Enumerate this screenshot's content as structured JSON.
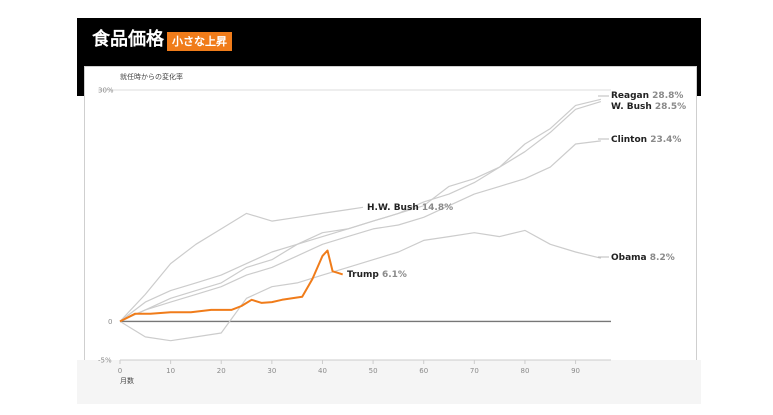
{
  "header": {
    "title": "食品価格",
    "badge": "小さな上昇"
  },
  "colors": {
    "banner_bg": "#000000",
    "accent": "#f07c1a",
    "comparison_line": "#cccccc",
    "zero_line": "#777777"
  },
  "chart_data": {
    "type": "line",
    "title": "食品価格",
    "subtitle": "小さな上昇",
    "ylabel": "就任時からの変化率",
    "xlabel": "月数",
    "ylim": [
      -5,
      30
    ],
    "xlim": [
      0,
      97
    ],
    "y_ticks": [
      "30%",
      "0",
      "-5%"
    ],
    "y_tick_values": [
      30,
      0,
      -5
    ],
    "x_ticks": [
      0,
      10,
      20,
      30,
      40,
      50,
      60,
      70,
      80,
      90
    ],
    "grid": false,
    "series": [
      {
        "name": "Reagan",
        "end_label": "28.8%",
        "x": [
          0,
          5,
          10,
          15,
          20,
          25,
          30,
          35,
          40,
          45,
          50,
          55,
          60,
          65,
          70,
          75,
          80,
          85,
          90,
          95
        ],
        "y": [
          0,
          2.5,
          4.0,
          5.0,
          6.0,
          7.5,
          9.0,
          10.0,
          11.0,
          12.0,
          13.0,
          14.0,
          15.0,
          17.5,
          18.5,
          20.0,
          23.0,
          25.0,
          28.0,
          28.8
        ]
      },
      {
        "name": "W. Bush",
        "end_label": "28.5%",
        "x": [
          0,
          5,
          10,
          15,
          20,
          25,
          30,
          35,
          40,
          45,
          50,
          55,
          60,
          65,
          70,
          75,
          80,
          85,
          90,
          95
        ],
        "y": [
          0,
          1.5,
          3.0,
          4.0,
          5.0,
          7.0,
          8.0,
          10.0,
          11.5,
          12.0,
          13.0,
          14.0,
          15.5,
          16.5,
          18.0,
          20.0,
          22.0,
          24.5,
          27.5,
          28.5
        ]
      },
      {
        "name": "Clinton",
        "end_label": "23.4%",
        "x": [
          0,
          5,
          10,
          15,
          20,
          25,
          30,
          35,
          40,
          45,
          50,
          55,
          60,
          65,
          70,
          75,
          80,
          85,
          90,
          95
        ],
        "y": [
          0,
          1.5,
          2.5,
          3.5,
          4.5,
          6.0,
          7.0,
          8.5,
          10.0,
          11.0,
          12.0,
          12.5,
          13.5,
          15.0,
          16.5,
          17.5,
          18.5,
          20.0,
          23.0,
          23.4
        ]
      },
      {
        "name": "H.W. Bush",
        "end_label": "14.8%",
        "x": [
          0,
          5,
          10,
          15,
          20,
          25,
          30,
          35,
          40,
          45,
          48
        ],
        "y": [
          0,
          3.5,
          7.5,
          10.0,
          12.0,
          14.0,
          13.0,
          13.5,
          14.0,
          14.5,
          14.8
        ]
      },
      {
        "name": "Obama",
        "end_label": "8.2%",
        "x": [
          0,
          5,
          10,
          15,
          20,
          25,
          30,
          35,
          40,
          45,
          50,
          55,
          60,
          65,
          70,
          75,
          80,
          85,
          90,
          95
        ],
        "y": [
          0,
          -2.0,
          -2.5,
          -2.0,
          -1.5,
          3.0,
          4.5,
          5.0,
          6.0,
          7.0,
          8.0,
          9.0,
          10.5,
          11.0,
          11.5,
          11.0,
          11.8,
          10.0,
          9.0,
          8.2
        ]
      },
      {
        "name": "Trump",
        "end_label": "6.1%",
        "highlight": true,
        "x": [
          0,
          3,
          6,
          10,
          14,
          18,
          22,
          24,
          26,
          28,
          30,
          32,
          34,
          36,
          38,
          40,
          41,
          42,
          43,
          44
        ],
        "y": [
          0,
          1.0,
          1.0,
          1.2,
          1.2,
          1.5,
          1.5,
          2.0,
          2.8,
          2.4,
          2.5,
          2.8,
          3.0,
          3.2,
          5.5,
          8.5,
          9.2,
          6.5,
          6.3,
          6.1
        ]
      }
    ]
  }
}
